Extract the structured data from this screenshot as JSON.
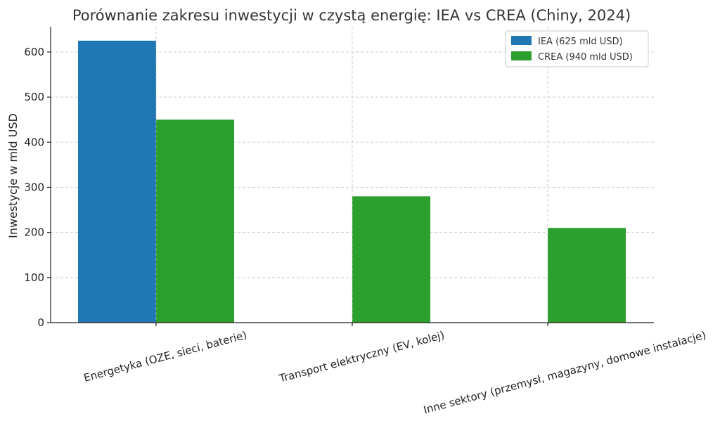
{
  "chart_data": {
    "type": "bar",
    "title": "Porównanie zakresu inwestycji w czystą energię: IEA vs CREA (Chiny, 2024)",
    "xlabel": "",
    "ylabel": "Inwestycje w mld USD",
    "categories": [
      "Energetyka (OZE, sieci, baterie)",
      "Transport elektryczny (EV, kolej)",
      "Inne sektory (przemysł, magazyny, domowe instalacje)"
    ],
    "series": [
      {
        "name": "IEA (625 mld USD)",
        "color": "#1f77b4",
        "values": [
          625,
          0,
          0
        ]
      },
      {
        "name": "CREA (940 mld USD)",
        "color": "#2ca02c",
        "values": [
          450,
          280,
          210
        ]
      }
    ],
    "ylim": [
      0,
      656
    ],
    "yticks": [
      0,
      100,
      200,
      300,
      400,
      500,
      600
    ],
    "grid": true,
    "legend_position": "top-right",
    "xtick_rotation_deg": -15
  }
}
